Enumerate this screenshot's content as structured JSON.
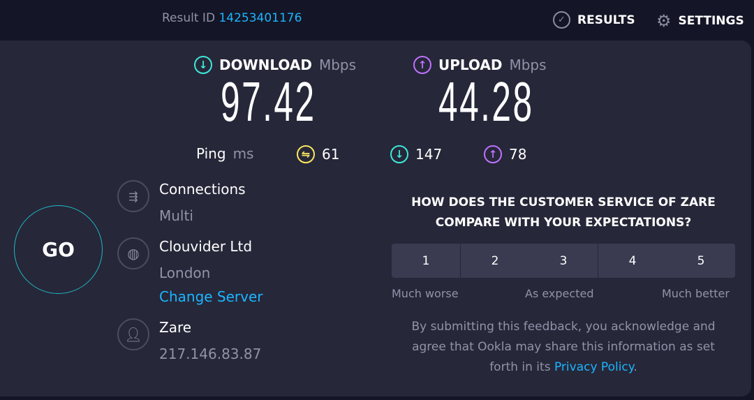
{
  "header": {
    "result_id_label": "Result ID",
    "result_id": "14253401176",
    "results_label": "RESULTS",
    "settings_label": "SETTINGS"
  },
  "download": {
    "label": "DOWNLOAD",
    "unit": "Mbps",
    "value": "97.42",
    "color": "#3ee8da"
  },
  "upload": {
    "label": "UPLOAD",
    "unit": "Mbps",
    "value": "44.28",
    "color": "#bf71ff"
  },
  "ping": {
    "label": "Ping",
    "unit": "ms",
    "idle": "61",
    "download": "147",
    "upload": "78",
    "idle_color": "#fbe85e"
  },
  "go_label": "GO",
  "connections": {
    "label": "Connections",
    "value": "Multi"
  },
  "server": {
    "name": "Clouvider Ltd",
    "location": "London",
    "change_label": "Change Server"
  },
  "provider": {
    "name": "Zare",
    "ip": "217.146.83.87"
  },
  "survey": {
    "question_line1": "HOW DOES THE CUSTOMER SERVICE OF ZARE",
    "question_line2": "COMPARE WITH YOUR EXPECTATIONS?",
    "options": [
      "1",
      "2",
      "3",
      "4",
      "5"
    ],
    "low_label": "Much worse",
    "mid_label": "As expected",
    "high_label": "Much better",
    "disclaimer_line1": "By submitting this feedback, you acknowledge and",
    "disclaimer_line2": "agree that Ookla may share this information as set",
    "disclaimer_line3_prefix": "forth in its",
    "privacy_link": "Privacy Policy",
    "disclaimer_suffix": "."
  }
}
